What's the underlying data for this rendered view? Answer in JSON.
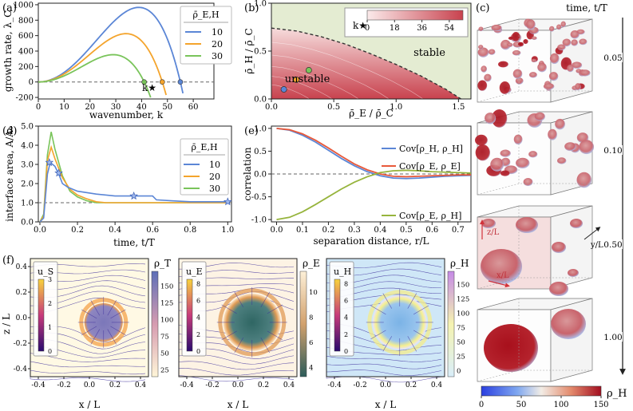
{
  "colors": {
    "blue": "#5b86d6",
    "orange": "#f4a42c",
    "green": "#79c45a",
    "red_line": "#e8593a",
    "olive": "#96b43c",
    "stable_bg": "#e4ecd2",
    "unstable_lo": "#f3d2d2",
    "unstable_hi": "#c8424e"
  },
  "panel_a": {
    "label": "(a)",
    "ylabel": "growth rate, λ_C",
    "xlabel": "wavenumber, k",
    "marker_label": "k★",
    "legend_title": "ρ̄_E,H",
    "chart_data": {
      "type": "line",
      "title": "",
      "xlabel": "wavenumber, k",
      "ylabel": "growth rate, λ_C",
      "xlim": [
        0,
        68
      ],
      "ylim": [
        -220,
        1020
      ],
      "xticks": [
        0,
        10,
        20,
        30,
        40,
        50,
        60
      ],
      "yticks": [
        -200,
        0,
        200,
        400,
        600,
        800,
        1000
      ],
      "series": [
        {
          "name": "10",
          "color": "#5b86d6",
          "kstar": 55,
          "peak_k": 33,
          "peak": 890
        },
        {
          "name": "20",
          "color": "#f4a42c",
          "kstar": 48,
          "peak_k": 29,
          "peak": 580
        },
        {
          "name": "30",
          "color": "#79c45a",
          "kstar": 41,
          "peak_k": 25,
          "peak": 330
        }
      ],
      "legend_placement": "right"
    }
  },
  "panel_b": {
    "label": "(b)",
    "ylabel": "ρ̄_H / ρ̄_C",
    "xlabel": "ρ̄_E / ρ̄_C",
    "region_stable": "stable",
    "region_unstable": "unstable",
    "colorbar_label": "k★",
    "chart_data": {
      "type": "heatmap",
      "xlim": [
        0,
        1.6
      ],
      "ylim": [
        0,
        1.0
      ],
      "xticks": [
        0.0,
        0.5,
        1.0,
        1.5
      ],
      "yticks": [
        0.0,
        0.5,
        1.0
      ],
      "boundary": [
        [
          0,
          0.74
        ],
        [
          0.2,
          0.71
        ],
        [
          0.4,
          0.65
        ],
        [
          0.6,
          0.57
        ],
        [
          0.8,
          0.47
        ],
        [
          1.0,
          0.36
        ],
        [
          1.2,
          0.24
        ],
        [
          1.4,
          0.1
        ],
        [
          1.52,
          0.0
        ]
      ],
      "colorbar_ticks": [
        0,
        18,
        36,
        54
      ],
      "points": [
        {
          "x": 0.1,
          "y": 0.1,
          "color": "#5b86d6"
        },
        {
          "x": 0.2,
          "y": 0.2,
          "color": "#f4a42c"
        },
        {
          "x": 0.3,
          "y": 0.3,
          "color": "#79c45a"
        }
      ]
    }
  },
  "panel_c": {
    "label": "(c)",
    "axis_label": "time, t/T",
    "times": [
      "0.05",
      "0.10",
      "0.50",
      "1.00"
    ],
    "zlabel": "z/L",
    "ylabel": "y/L",
    "xlabel": "x/L",
    "colorbar_label": "ρ_H",
    "colorbar_ticks": [
      "0",
      "50",
      "100",
      "150"
    ]
  },
  "panel_d": {
    "label": "(d)",
    "ylabel": "interface area, A/A₀",
    "xlabel": "time, t/T",
    "legend_title": "ρ̄_E,H",
    "chart_data": {
      "type": "line",
      "xlim": [
        0,
        1.02
      ],
      "ylim": [
        0,
        5.0
      ],
      "xticks": [
        0.0,
        0.2,
        0.4,
        0.6,
        0.8,
        1.0
      ],
      "yticks": [
        0.0,
        1.0,
        2.0,
        3.0,
        4.0,
        5.0
      ],
      "series": [
        {
          "name": "10",
          "color": "#5b86d6",
          "x": [
            0.0,
            0.02,
            0.04,
            0.055,
            0.08,
            0.1,
            0.12,
            0.15,
            0.2,
            0.3,
            0.4,
            0.5,
            0.6,
            0.62,
            0.7,
            0.8,
            0.9,
            1.0
          ],
          "y": [
            0.0,
            0.2,
            2.5,
            3.1,
            2.9,
            2.5,
            2.0,
            1.8,
            1.6,
            1.45,
            1.35,
            1.35,
            1.35,
            1.15,
            1.1,
            1.05,
            1.05,
            1.05
          ]
        },
        {
          "name": "20",
          "color": "#f4a42c",
          "x": [
            0.0,
            0.02,
            0.04,
            0.06,
            0.08,
            0.12,
            0.16,
            0.2,
            0.25,
            0.3,
            0.35,
            0.4,
            1.0
          ],
          "y": [
            0.0,
            0.3,
            3.2,
            3.9,
            3.3,
            2.3,
            1.7,
            1.4,
            1.2,
            1.05,
            1.0,
            1.0,
            1.0
          ]
        },
        {
          "name": "30",
          "color": "#79c45a",
          "x": [
            0.0,
            0.02,
            0.04,
            0.06,
            0.08,
            0.12,
            0.16,
            0.2,
            0.25,
            0.3,
            0.35,
            1.0
          ],
          "y": [
            0.0,
            0.4,
            3.5,
            4.7,
            3.8,
            2.4,
            1.6,
            1.3,
            1.1,
            1.0,
            1.0,
            1.0
          ]
        }
      ],
      "markers": [
        [
          0.05,
          3.1
        ],
        [
          0.1,
          2.55
        ],
        [
          0.5,
          1.35
        ],
        [
          1.0,
          1.05
        ]
      ],
      "reference_line": 1.0
    }
  },
  "panel_e": {
    "label": "(e)",
    "ylabel": "correlation",
    "xlabel": "separation distance, r/L",
    "chart_data": {
      "type": "line",
      "xlim": [
        -0.02,
        0.75
      ],
      "ylim": [
        -1.05,
        1.05
      ],
      "xticks": [
        0.0,
        0.1,
        0.2,
        0.3,
        0.4,
        0.5,
        0.6,
        0.7
      ],
      "yticks": [
        -1.0,
        -0.5,
        0.0,
        0.5,
        1.0
      ],
      "series": [
        {
          "name": "Cov[ρ_H, ρ_H]",
          "color": "#5b86d6",
          "x": [
            0.0,
            0.05,
            0.1,
            0.15,
            0.2,
            0.25,
            0.3,
            0.35,
            0.4,
            0.45,
            0.5,
            0.55,
            0.6,
            0.65,
            0.7,
            0.75
          ],
          "y": [
            1.0,
            0.96,
            0.85,
            0.7,
            0.52,
            0.34,
            0.18,
            0.05,
            -0.04,
            -0.09,
            -0.1,
            -0.09,
            -0.07,
            -0.05,
            -0.04,
            -0.03
          ]
        },
        {
          "name": "Cov[ρ_E, ρ_E]",
          "color": "#e8593a",
          "x": [
            0.0,
            0.05,
            0.1,
            0.15,
            0.2,
            0.25,
            0.3,
            0.35,
            0.4,
            0.45,
            0.5,
            0.55,
            0.6,
            0.65,
            0.7,
            0.75
          ],
          "y": [
            1.0,
            0.97,
            0.88,
            0.74,
            0.57,
            0.39,
            0.22,
            0.09,
            0.0,
            -0.05,
            -0.06,
            -0.05,
            -0.04,
            -0.03,
            -0.02,
            -0.02
          ]
        },
        {
          "name": "Cov[ρ_E, ρ_H]",
          "color": "#96b43c",
          "x": [
            0.0,
            0.05,
            0.1,
            0.15,
            0.2,
            0.25,
            0.3,
            0.35,
            0.4,
            0.45,
            0.5,
            0.55,
            0.6,
            0.65,
            0.7,
            0.75
          ],
          "y": [
            -1.0,
            -0.95,
            -0.83,
            -0.67,
            -0.5,
            -0.33,
            -0.18,
            -0.06,
            0.03,
            0.07,
            0.08,
            0.07,
            0.05,
            0.04,
            0.03,
            0.02
          ]
        }
      ],
      "reference_line": 0.0
    }
  },
  "panel_f": {
    "label": "(f)",
    "ylabel": "z / L",
    "xlabel": "x / L",
    "xticks": [
      "-0.4",
      "-0.2",
      "0.0",
      "0.2",
      "0.4"
    ],
    "yticks": [
      "-0.4",
      "-0.2",
      "0.0",
      "0.2",
      "0.4"
    ],
    "maps": [
      {
        "speed_label": "u_S",
        "speed_ticks": [
          "0",
          "1",
          "2",
          "3"
        ],
        "field_label": "ρ_T",
        "field_ticks": [
          "25",
          "50",
          "75",
          "100",
          "125",
          "150"
        ]
      },
      {
        "speed_label": "u_E",
        "speed_ticks": [
          "0",
          "2",
          "4",
          "6",
          "8"
        ],
        "field_label": "ρ_E",
        "field_ticks": [
          "4",
          "6",
          "8",
          "10"
        ]
      },
      {
        "speed_label": "u_H",
        "speed_ticks": [
          "0",
          "2",
          "4",
          "6",
          "8"
        ],
        "field_label": "ρ_H",
        "field_ticks": [
          "0",
          "25",
          "50",
          "75",
          "100",
          "125",
          "150"
        ]
      }
    ]
  }
}
